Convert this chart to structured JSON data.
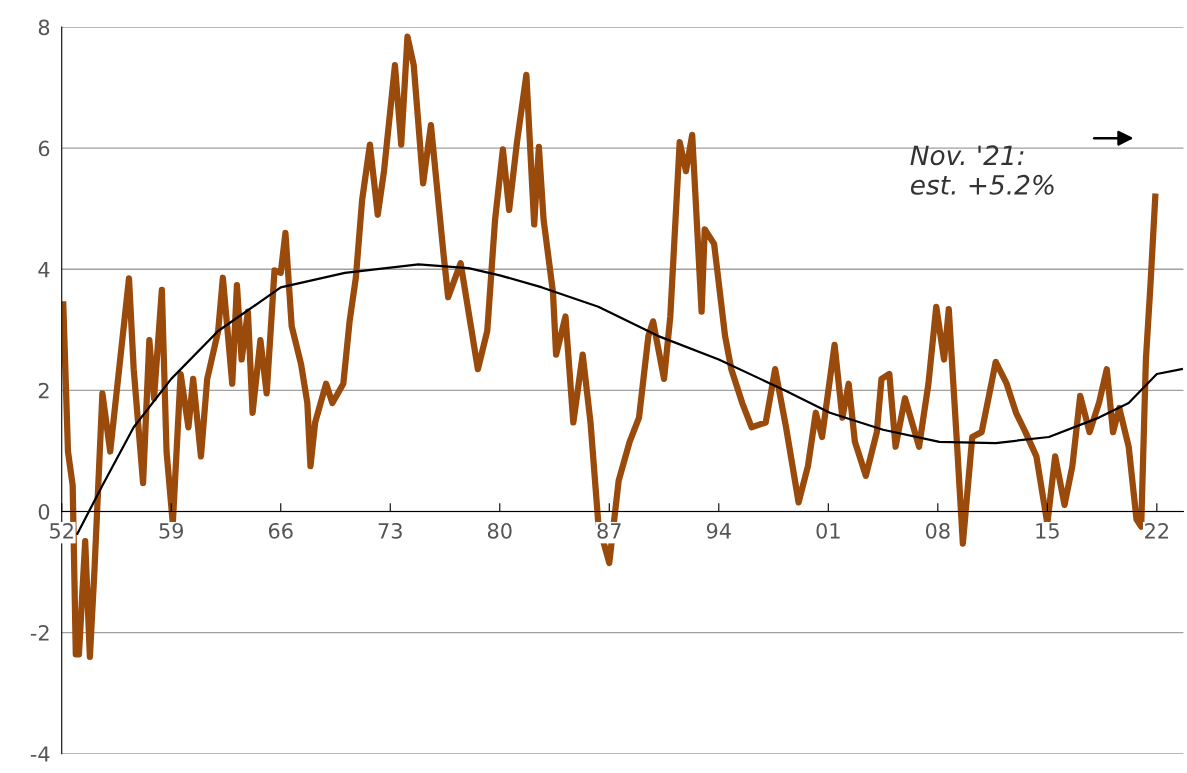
{
  "chart_data": {
    "type": "line",
    "xlim": [
      1952,
      2023.7
    ],
    "ylim": [
      -4,
      8
    ],
    "xticks": [
      {
        "value": 1952,
        "label": "52"
      },
      {
        "value": 1959,
        "label": "59"
      },
      {
        "value": 1966,
        "label": "66"
      },
      {
        "value": 1973,
        "label": "73"
      },
      {
        "value": 1980,
        "label": "80"
      },
      {
        "value": 1987,
        "label": "87"
      },
      {
        "value": 1994,
        "label": "94"
      },
      {
        "value": 2001,
        "label": "01"
      },
      {
        "value": 2008,
        "label": "08"
      },
      {
        "value": 2015,
        "label": "15"
      },
      {
        "value": 2022,
        "label": "22"
      }
    ],
    "yticks": [
      -4,
      -2,
      0,
      2,
      4,
      6,
      8
    ],
    "grid": "y",
    "marker": "none",
    "line_style": "solid",
    "annotations": [
      "Nov. '21:\nest. +5.2%"
    ],
    "series": [
      {
        "color": "#9a4a0b",
        "x": [
          1952.1,
          1952.4,
          1952.7,
          1952.9,
          1953.1,
          1953.5,
          1953.8,
          1954.1,
          1954.6,
          1955.1,
          1955.5,
          1956.3,
          1956.6,
          1957.2,
          1957.6,
          1957.9,
          1958.4,
          1958.7,
          1959.1,
          1959.6,
          1960.1,
          1960.4,
          1960.9,
          1961.3,
          1962.0,
          1962.3,
          1962.9,
          1963.2,
          1963.5,
          1963.9,
          1964.2,
          1964.7,
          1965.1,
          1965.6,
          1966.0,
          1966.3,
          1966.7,
          1967.3,
          1967.7,
          1967.9,
          1968.2,
          1968.9,
          1969.3,
          1970.0,
          1970.4,
          1970.8,
          1971.2,
          1971.7,
          1972.2,
          1972.6,
          1973.3,
          1973.7,
          1974.1,
          1974.5,
          1975.1,
          1975.6,
          1976.4,
          1976.7,
          1977.5,
          1978.6,
          1979.2,
          1979.7,
          1980.2,
          1980.6,
          1981.1,
          1981.7,
          1982.2,
          1982.5,
          1982.8,
          1983.4,
          1983.6,
          1984.2,
          1984.7,
          1985.3,
          1985.8,
          1986.3,
          1987.0,
          1987.6,
          1988.3,
          1988.9,
          1989.5,
          1989.8,
          1990.5,
          1990.9,
          1991.5,
          1991.9,
          1992.3,
          1992.9,
          1993.1,
          1993.7,
          1994.4,
          1994.8,
          1995.5,
          1996.1,
          1997.0,
          1997.6,
          1998.3,
          1999.1,
          1999.7,
          2000.2,
          2000.6,
          2001.4,
          2001.9,
          2002.3,
          2002.7,
          2003.4,
          2004.1,
          2004.4,
          2004.9,
          2005.3,
          2005.9,
          2006.8,
          2007.4,
          2007.9,
          2008.4,
          2008.7,
          2009.2,
          2009.6,
          2010.2,
          2010.8,
          2011.3,
          2011.7,
          2012.4,
          2013.0,
          2013.6,
          2014.3,
          2015.0,
          2015.5,
          2016.1,
          2016.6,
          2017.1,
          2017.7,
          2018.3,
          2018.8,
          2019.2,
          2019.6,
          2020.2,
          2020.7,
          2021.0,
          2021.3,
          2021.6,
          2021.9
        ],
        "values": [
          3.42,
          0.99,
          0.43,
          -2.36,
          -2.36,
          -0.49,
          -2.4,
          -0.93,
          1.95,
          0.99,
          1.95,
          3.85,
          2.35,
          0.47,
          2.83,
          1.87,
          3.66,
          0.99,
          -0.2,
          2.27,
          1.39,
          2.19,
          0.91,
          2.19,
          2.98,
          3.86,
          2.11,
          3.74,
          2.51,
          3.3,
          1.63,
          2.83,
          1.95,
          3.98,
          3.94,
          4.6,
          3.06,
          2.43,
          1.79,
          0.75,
          1.47,
          2.11,
          1.79,
          2.11,
          3.14,
          3.86,
          5.14,
          6.06,
          4.9,
          5.62,
          7.37,
          6.06,
          7.84,
          7.37,
          5.42,
          6.38,
          4.26,
          3.54,
          4.1,
          2.35,
          2.98,
          4.82,
          5.98,
          4.98,
          6.1,
          7.21,
          4.74,
          6.02,
          4.82,
          3.62,
          2.59,
          3.22,
          1.47,
          2.59,
          1.47,
          -0.2,
          -0.85,
          0.51,
          1.15,
          1.55,
          2.9,
          3.14,
          2.19,
          3.22,
          6.1,
          5.62,
          6.22,
          3.3,
          4.66,
          4.42,
          2.9,
          2.35,
          1.79,
          1.39,
          1.47,
          2.35,
          1.39,
          0.15,
          0.75,
          1.63,
          1.23,
          2.75,
          1.55,
          2.11,
          1.15,
          0.59,
          1.31,
          2.19,
          2.27,
          1.07,
          1.87,
          1.07,
          2.11,
          3.38,
          2.51,
          3.34,
          1.23,
          -0.53,
          1.23,
          1.31,
          1.95,
          2.47,
          2.11,
          1.63,
          1.31,
          0.91,
          -0.2,
          0.91,
          0.11,
          0.75,
          1.91,
          1.31,
          1.79,
          2.35,
          1.31,
          1.71,
          1.07,
          -0.13,
          -0.25,
          2.51,
          3.78,
          5.2
        ]
      },
      {
        "color": "#000000",
        "x": [
          1953.0,
          1954.6,
          1956.6,
          1959.0,
          1962.0,
          1966.0,
          1970.1,
          1974.8,
          1978.0,
          1980.0,
          1982.7,
          1986.3,
          1990.1,
          1994.0,
          1998.3,
          2001.1,
          2004.5,
          2008.1,
          2011.7,
          2015.1,
          2018.3,
          2020.2,
          2022.0,
          2023.6
        ],
        "values": [
          -0.37,
          0.43,
          1.39,
          2.19,
          2.98,
          3.7,
          3.94,
          4.08,
          4.02,
          3.9,
          3.7,
          3.38,
          2.9,
          2.51,
          1.99,
          1.63,
          1.35,
          1.15,
          1.13,
          1.23,
          1.55,
          1.79,
          2.27,
          2.35
        ]
      }
    ]
  }
}
